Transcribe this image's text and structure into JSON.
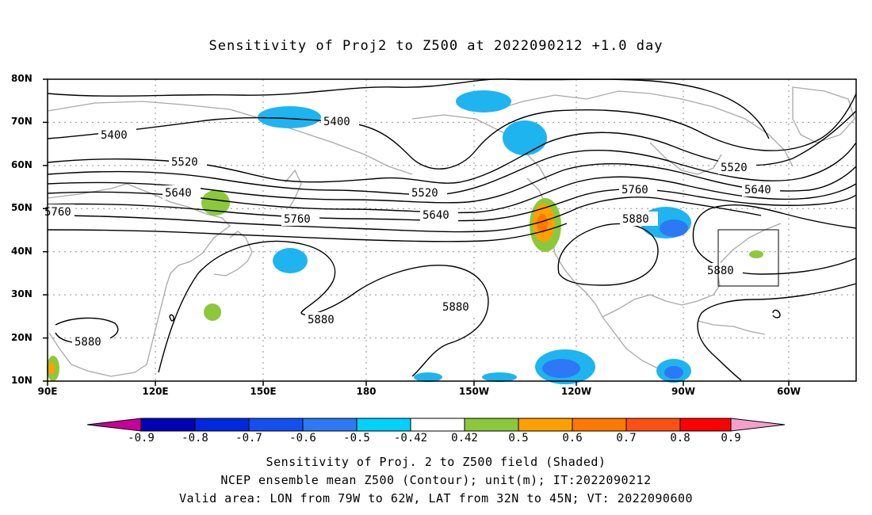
{
  "title": "Sensitivity of Proj2 to Z500 at 2022090212 +1.0 day",
  "lat_labels": [
    "80N",
    "70N",
    "60N",
    "50N",
    "40N",
    "30N",
    "20N",
    "10N"
  ],
  "lon_labels": [
    "90E",
    "120E",
    "150E",
    "180",
    "150W",
    "120W",
    "90W",
    "60W"
  ],
  "contour_labels": [
    "5400",
    "5400",
    "5520",
    "5520",
    "5520",
    "5640",
    "5640",
    "5640",
    "5760",
    "5760",
    "5760",
    "5880",
    "5880",
    "5880",
    "5880",
    "5880"
  ],
  "colorbar": {
    "labels": [
      "-0.9",
      "-0.8",
      "-0.7",
      "-0.6",
      "-0.5",
      "-0.42",
      "0.42",
      "0.5",
      "0.6",
      "0.7",
      "0.8",
      "0.9"
    ],
    "colors": [
      "#c8009a",
      "#0000b4",
      "#0028dc",
      "#1450f0",
      "#2d78f5",
      "#1eb4f0",
      "#00d2fa",
      "#ffffff",
      "#8cc83c",
      "#ffa000",
      "#ff7800",
      "#ff5014",
      "#ff0000",
      "#f5a0c8"
    ]
  },
  "footer": {
    "line1": "Sensitivity of Proj. 2 to Z500 field (Shaded)",
    "line2": "NCEP ensemble mean Z500 (Contour); unit(m); IT:2022090212",
    "line3": "Valid area: LON from 79W to 62W, LAT from 32N to 45N; VT: 2022090600"
  }
}
